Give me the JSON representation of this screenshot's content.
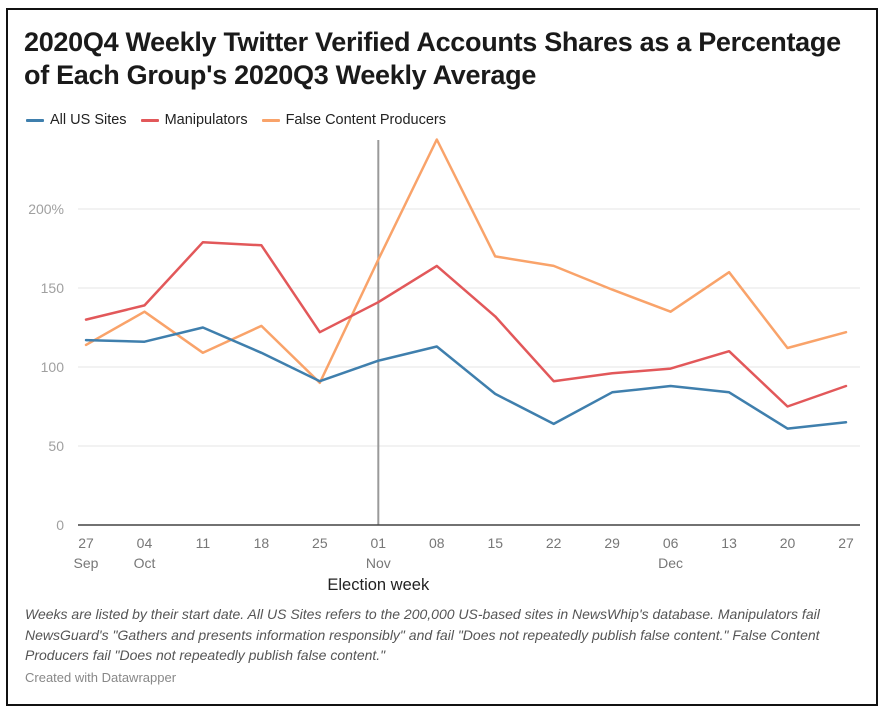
{
  "chart_data": {
    "type": "line",
    "title": "2020Q4 Weekly Twitter Verified Accounts Shares as a Percentage of Each Group's 2020Q3 Weekly Average",
    "xlabel": "",
    "ylabel": "",
    "ylim": [
      0,
      250
    ],
    "yticks": [
      {
        "value": 0,
        "label": "0"
      },
      {
        "value": 50,
        "label": "50"
      },
      {
        "value": 100,
        "label": "100"
      },
      {
        "value": 150,
        "label": "150"
      },
      {
        "value": 200,
        "label": "200%"
      }
    ],
    "grid": true,
    "legend_position": "top-left",
    "categories": [
      "27 Sep",
      "04 Oct",
      "11 Oct",
      "18 Oct",
      "25 Oct",
      "01 Nov",
      "08 Nov",
      "15 Nov",
      "22 Nov",
      "29 Nov",
      "06 Dec",
      "13 Dec",
      "20 Dec",
      "27 Dec"
    ],
    "xtick_labels": [
      {
        "day": "27",
        "month": "Sep"
      },
      {
        "day": "04",
        "month": "Oct"
      },
      {
        "day": "11",
        "month": ""
      },
      {
        "day": "18",
        "month": ""
      },
      {
        "day": "25",
        "month": ""
      },
      {
        "day": "01",
        "month": "Nov"
      },
      {
        "day": "08",
        "month": ""
      },
      {
        "day": "15",
        "month": ""
      },
      {
        "day": "22",
        "month": ""
      },
      {
        "day": "29",
        "month": ""
      },
      {
        "day": "06",
        "month": "Dec"
      },
      {
        "day": "13",
        "month": ""
      },
      {
        "day": "20",
        "month": ""
      },
      {
        "day": "27",
        "month": ""
      }
    ],
    "series": [
      {
        "name": "All US Sites",
        "color": "#3f7fad",
        "values": [
          117,
          116,
          125,
          109,
          91,
          104,
          113,
          83,
          64,
          84,
          88,
          84,
          61,
          65
        ]
      },
      {
        "name": "Manipulators",
        "color": "#e2585a",
        "values": [
          130,
          139,
          179,
          177,
          122,
          141,
          164,
          132,
          91,
          96,
          99,
          110,
          75,
          88
        ]
      },
      {
        "name": "False Content Producers",
        "color": "#f9a36a",
        "values": [
          114,
          135,
          109,
          126,
          90,
          168,
          244,
          170,
          164,
          149,
          135,
          160,
          112,
          122
        ]
      }
    ],
    "annotations": [
      {
        "type": "vertical-line",
        "x": "01 Nov",
        "label": "Election week"
      }
    ]
  },
  "notes": "Weeks are listed by their start date. All US Sites refers to the 200,000  US-based sites in NewsWhip's database. Manipulators fail NewsGuard's \"Gathers and presents information responsibly\" and fail \"Does not repeatedly publish false content.\" False Content Producers fail \"Does not repeatedly publish false content.\"",
  "credit": "Created with Datawrapper"
}
